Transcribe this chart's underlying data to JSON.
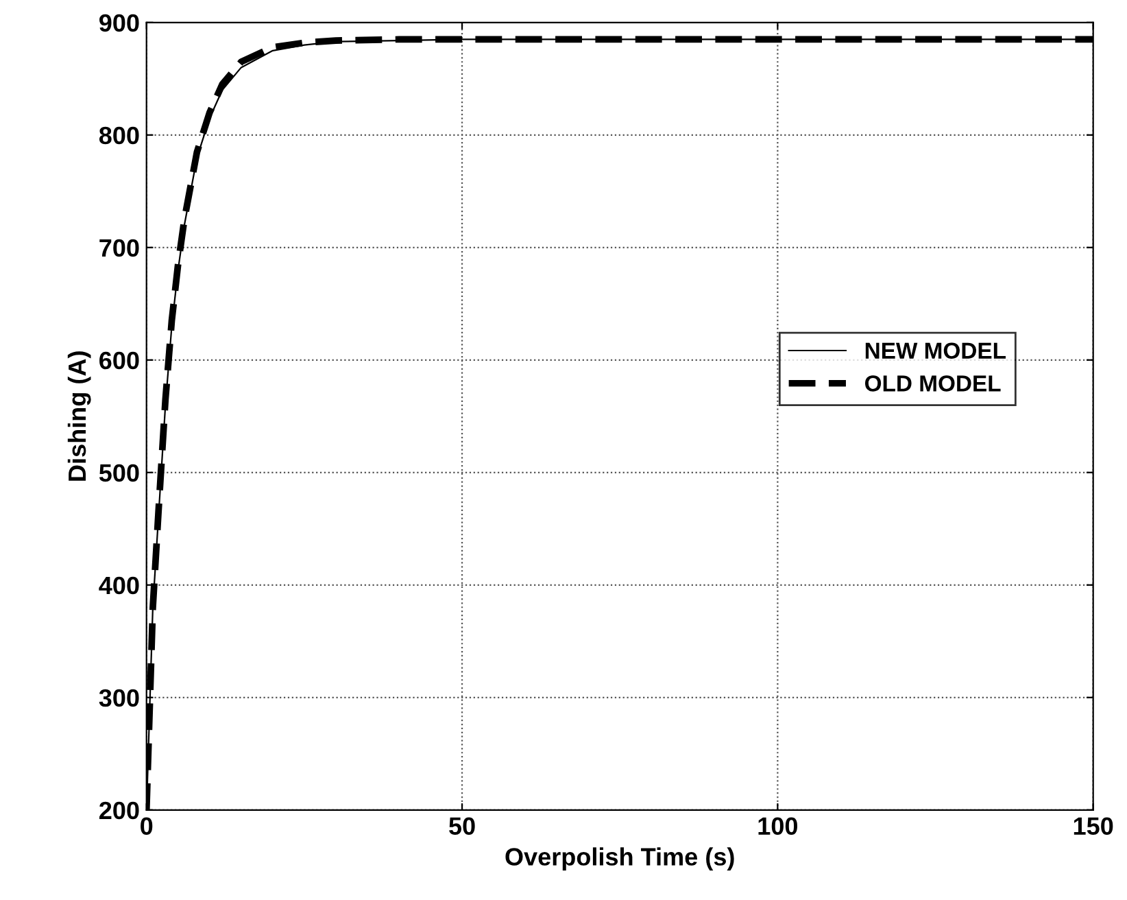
{
  "chart_data": {
    "type": "line",
    "xlabel": "Overpolish Time (s)",
    "ylabel": "Dishing (A)",
    "xlim": [
      0,
      150
    ],
    "ylim": [
      200,
      900
    ],
    "xticks": [
      0,
      50,
      100,
      150
    ],
    "yticks": [
      200,
      300,
      400,
      500,
      600,
      700,
      800,
      900
    ],
    "grid": true,
    "legend": "center right",
    "marker": "none",
    "series": [
      {
        "name": "NEW MODEL",
        "color": "#000000",
        "line_style": "solid",
        "x": [
          0,
          0.5,
          1,
          2,
          3,
          4,
          5,
          6,
          8,
          10,
          12,
          15,
          20,
          25,
          30,
          40,
          50,
          150
        ],
        "values": [
          200,
          290,
          380,
          470,
          560,
          630,
          680,
          720,
          780,
          815,
          840,
          860,
          875,
          880,
          883,
          884,
          885,
          885
        ]
      },
      {
        "name": "OLD MODEL",
        "color": "#000000",
        "line_style": "dashed",
        "x": [
          0,
          0.5,
          1,
          2,
          3,
          4,
          5,
          6,
          8,
          10,
          12,
          15,
          20,
          25,
          30,
          40,
          50,
          150
        ],
        "values": [
          200,
          290,
          380,
          475,
          565,
          635,
          685,
          725,
          785,
          820,
          845,
          865,
          878,
          882,
          884,
          885,
          885,
          885
        ]
      }
    ]
  }
}
